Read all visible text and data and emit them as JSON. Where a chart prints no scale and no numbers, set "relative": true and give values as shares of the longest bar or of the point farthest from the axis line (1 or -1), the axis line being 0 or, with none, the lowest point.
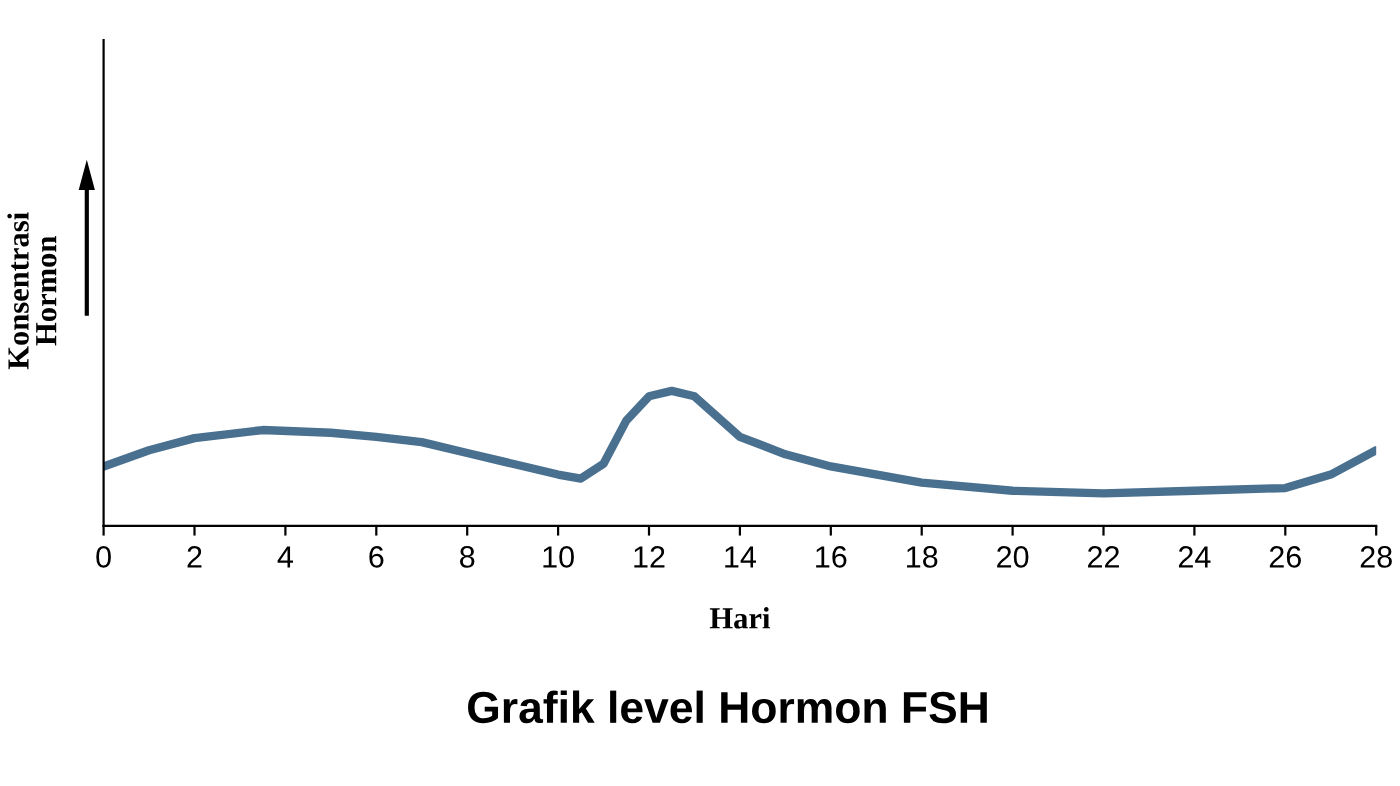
{
  "chart_data": {
    "type": "line",
    "title": "Grafik level Hormon FSH",
    "xlabel": "Hari",
    "ylabel": "Konsentrasi\nHormon",
    "relative": true,
    "tick_labels": "x",
    "grid": false,
    "x": [
      0,
      1,
      2,
      3.5,
      5,
      6,
      7,
      8,
      9,
      10,
      10.5,
      11,
      11.5,
      12,
      12.5,
      13,
      13.5,
      14,
      15,
      16,
      18,
      20,
      22,
      24,
      26,
      27,
      28
    ],
    "series": [
      {
        "color": "#4a7090",
        "values": [
          0.44,
          0.56,
          0.65,
          0.71,
          0.69,
          0.66,
          0.62,
          0.54,
          0.46,
          0.38,
          0.35,
          0.46,
          0.78,
          0.96,
          1,
          0.96,
          0.81,
          0.66,
          0.53,
          0.44,
          0.32,
          0.26,
          0.24,
          0.26,
          0.28,
          0.38,
          0.56
        ]
      }
    ],
    "xlim": [
      0,
      28
    ],
    "xticks": [
      0,
      2,
      4,
      6,
      8,
      10,
      12,
      14,
      16,
      18,
      20,
      22,
      24,
      26,
      28
    ]
  }
}
